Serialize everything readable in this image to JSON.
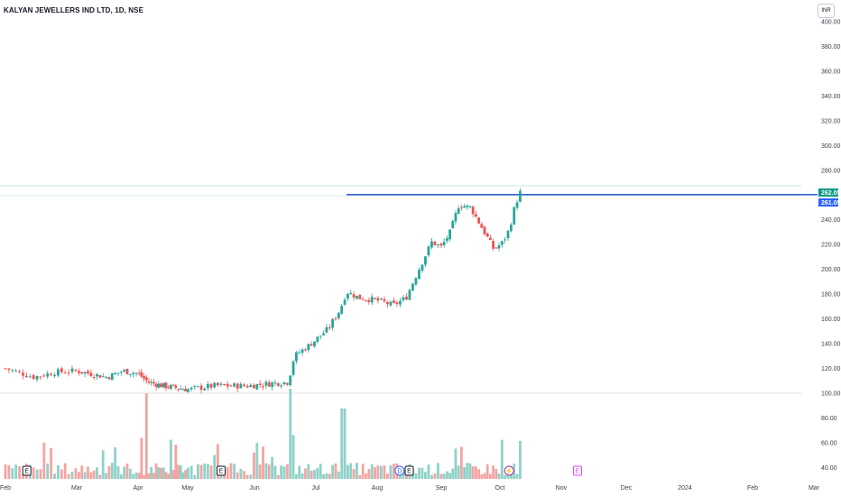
{
  "title": "KALYAN JEWELLERS IND LTD, 1D, NSE",
  "currency_button": "INR",
  "colors": {
    "up": "#26a69a",
    "down": "#ef5350",
    "vol_up": "#8fd1c8",
    "vol_down": "#f4a4a2",
    "resistance": "#1848cc",
    "last_price_bg": "#089981",
    "level_bg": "#2962ff",
    "earnings_stroke": "#131722",
    "future_earnings": "#e040fb",
    "dividend": "#2962ff",
    "split": "#9c27b0"
  },
  "chart_data": {
    "type": "candlestick",
    "y_axis": {
      "ticks": [
        "400.00",
        "380.00",
        "360.00",
        "340.00",
        "320.00",
        "300.00",
        "280.00",
        "240.00",
        "220.00",
        "200.00",
        "180.00",
        "160.00",
        "140.00",
        "120.00",
        "100.00",
        "80.00",
        "60.00",
        "40.00"
      ],
      "range": [
        35,
        402
      ]
    },
    "x_axis": {
      "labels": [
        "Feb",
        "Mar",
        "Apr",
        "May",
        "Jun",
        "Jul",
        "Aug",
        "Sep",
        "Oct",
        "Nov",
        "Dec",
        "2024",
        "Feb",
        "Mar"
      ]
    },
    "last_price_label": "262.05",
    "level_label": "261.05",
    "resistance_value": 261.05,
    "volume_baseline_value": 100,
    "volume_max_value": 100,
    "events": [
      {
        "month_index": 0.3,
        "glyph": "E",
        "kind": "earnings"
      },
      {
        "month_index": 3.5,
        "glyph": "E",
        "kind": "earnings"
      },
      {
        "month_index": 6.35,
        "glyph": "D",
        "kind": "dividend"
      },
      {
        "month_index": 6.5,
        "glyph": "E",
        "kind": "earnings"
      },
      {
        "month_index": 8.15,
        "glyph": "⚡",
        "kind": "split"
      },
      {
        "month_index": 9.25,
        "glyph": "E",
        "kind": "future_earnings"
      }
    ]
  }
}
